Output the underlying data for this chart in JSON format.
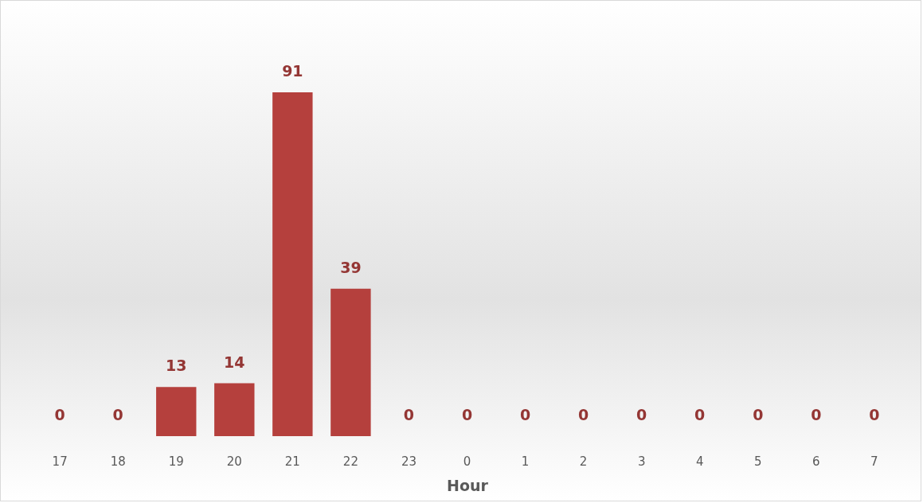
{
  "chart_data": {
    "type": "bar",
    "xlabel": "Hour",
    "categories": [
      "17",
      "18",
      "19",
      "20",
      "21",
      "22",
      "23",
      "0",
      "1",
      "2",
      "3",
      "4",
      "5",
      "6",
      "7"
    ],
    "values": [
      0,
      0,
      13,
      14,
      91,
      39,
      0,
      0,
      0,
      0,
      0,
      0,
      0,
      0,
      0
    ],
    "color": "#b5403d",
    "data_labels": true,
    "grid": false,
    "tick_labels": "x"
  }
}
